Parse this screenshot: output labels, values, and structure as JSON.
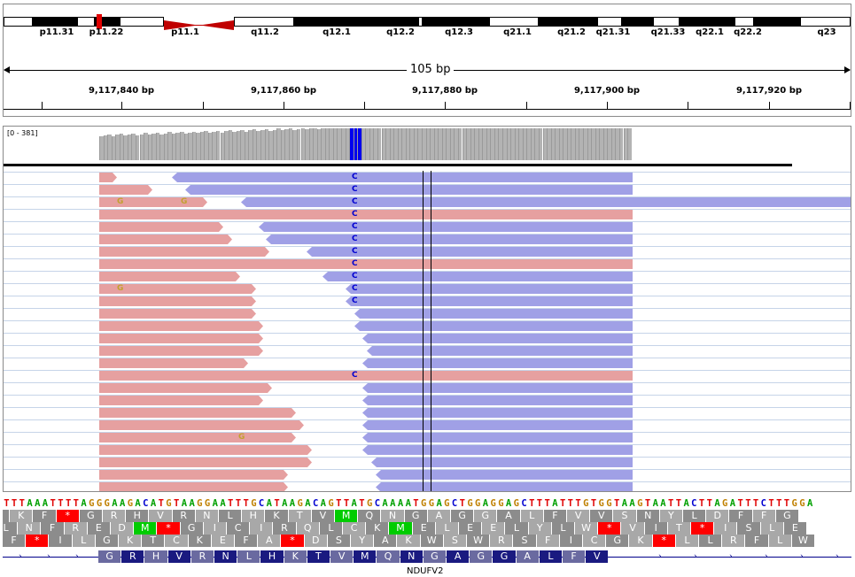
{
  "ideogram": {
    "bands": [
      "p11.31",
      "p11.22",
      "p11.1",
      "q11.2",
      "q12.1",
      "q12.2",
      "q12.3",
      "q21.1",
      "q21.2",
      "q21.31",
      "q21.33",
      "q22.1",
      "q22.2",
      "q23"
    ]
  },
  "ruler": {
    "span_label": "105 bp",
    "ticks": [
      "9,117,840 bp",
      "9,117,860 bp",
      "9,117,880 bp",
      "9,117,900 bp",
      "9,117,920 bp"
    ]
  },
  "coverage": {
    "range_label": "[0 - 381]"
  },
  "alignment": {
    "mismatch_base": "C",
    "alt_base": "G"
  },
  "sequence": {
    "dna": "TTTAAATTTTAGGGAAGACATGTAAGGAATTTGCATAAGACAGTTATGCAAAATGGAGCTGGAGGAGCTTTATTTGTGGTAAGTAATTACTTAGATTTCTTTGGA",
    "frame1": [
      "F",
      "K",
      "F",
      "*",
      "G",
      "R",
      "H",
      "V",
      "R",
      "N",
      "L",
      "H",
      "K",
      "T",
      "V",
      "M",
      "Q",
      "N",
      "G",
      "A",
      "G",
      "G",
      "A",
      "L",
      "F",
      "V",
      "V",
      "S",
      "N",
      "Y",
      "L",
      "D",
      "F",
      "F",
      "G"
    ],
    "frame2": [
      "L",
      "N",
      "F",
      "R",
      "E",
      "D",
      "M",
      "*",
      "G",
      "I",
      "C",
      "I",
      "R",
      "Q",
      "L",
      "C",
      "K",
      "M",
      "E",
      "L",
      "E",
      "E",
      "L",
      "Y",
      "L",
      "W",
      "*",
      "V",
      "I",
      "T",
      "*",
      "I",
      "S",
      "L",
      "E"
    ],
    "frame3": [
      "F",
      "*",
      "I",
      "L",
      "G",
      "K",
      "T",
      "C",
      "K",
      "E",
      "F",
      "A",
      "*",
      "D",
      "S",
      "Y",
      "A",
      "K",
      "W",
      "S",
      "W",
      "R",
      "S",
      "F",
      "I",
      "C",
      "G",
      "K",
      "*",
      "L",
      "L",
      "R",
      "F",
      "L",
      "W"
    ],
    "exon_aa": [
      "G",
      "R",
      "H",
      "V",
      "R",
      "N",
      "L",
      "H",
      "K",
      "T",
      "V",
      "M",
      "Q",
      "N",
      "G",
      "A",
      "G",
      "G",
      "A",
      "L",
      "F",
      "V"
    ]
  },
  "gene": {
    "name": "NDUFV2"
  },
  "colors": {
    "forward_read": "#e6a0a0",
    "reverse_read": "#a0a0e6",
    "coverage": "#b3b3b3",
    "mismatch": "#0000ee",
    "stop_codon": "#ff0000",
    "start_codon": "#00cc00",
    "exon": "#1a1a80"
  }
}
